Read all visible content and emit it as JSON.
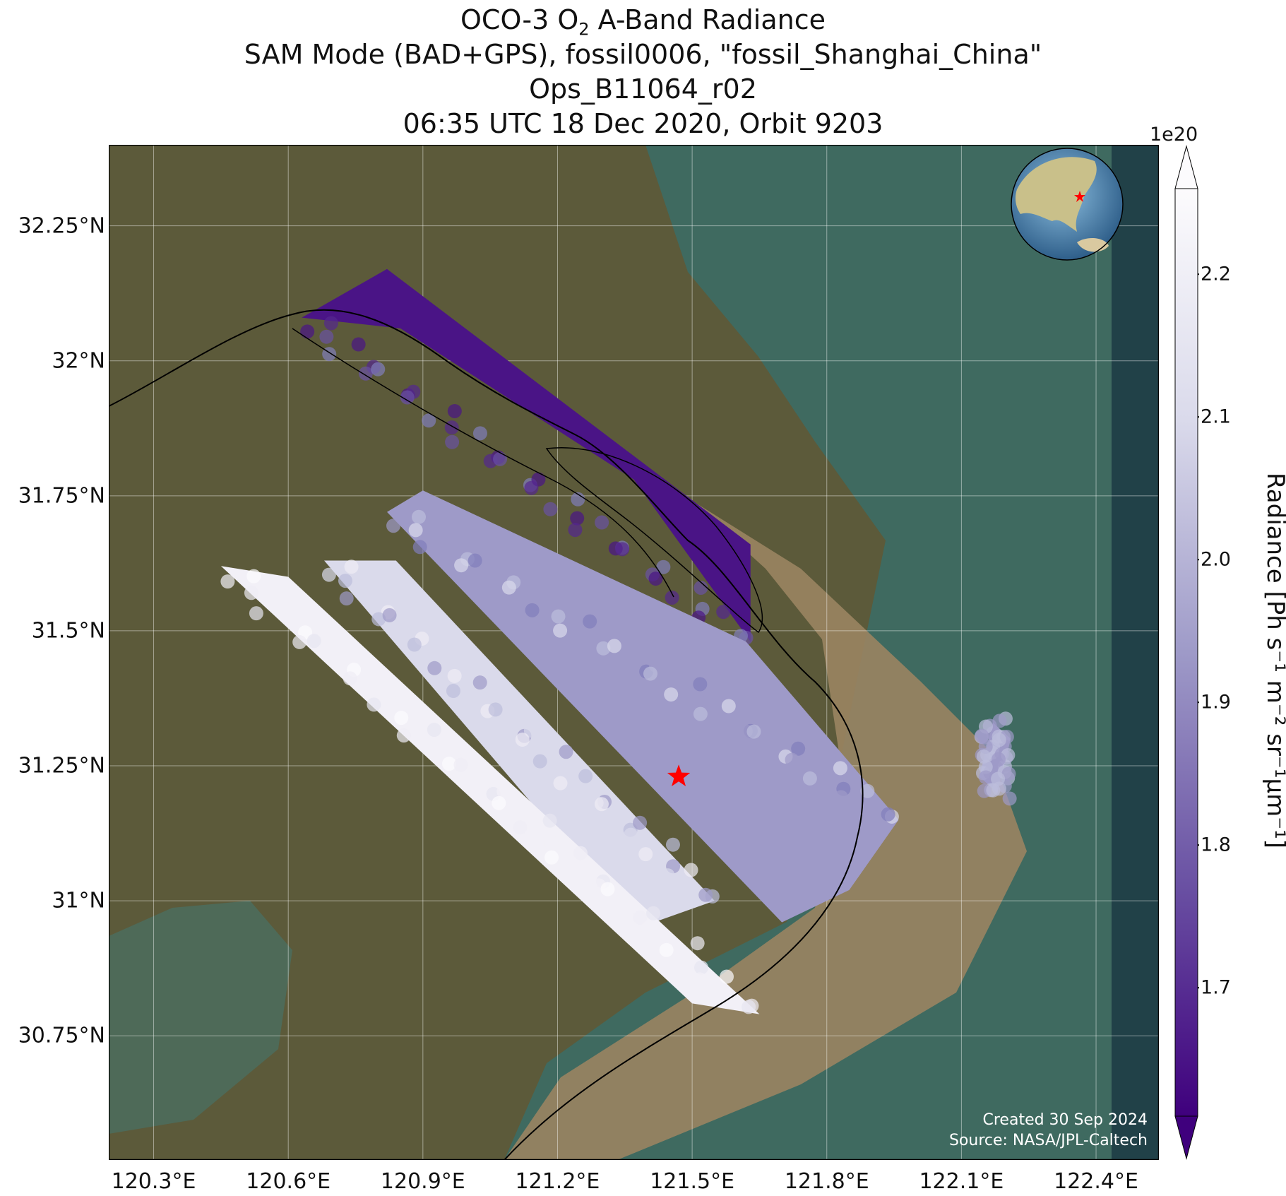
{
  "title": {
    "line1_prefix": "OCO-3 O",
    "line1_sub": "2",
    "line1_suffix": " A-Band Radiance",
    "line2": "SAM Mode (BAD+GPS), fossil0006, \"fossil_Shanghai_China\"",
    "line3": "Ops_B11064_r02",
    "line4": "06:35 UTC 18 Dec 2020, Orbit 9203"
  },
  "axes": {
    "lat_labels": [
      "32.25°N",
      "32°N",
      "31.75°N",
      "31.5°N",
      "31.25°N",
      "31°N",
      "30.75°N"
    ],
    "lat_values": [
      32.25,
      32.0,
      31.75,
      31.5,
      31.25,
      31.0,
      30.75
    ],
    "lon_labels": [
      "120.3°E",
      "120.6°E",
      "120.9°E",
      "121.2°E",
      "121.5°E",
      "121.8°E",
      "122.1°E",
      "122.4°E"
    ],
    "lon_values": [
      120.3,
      120.6,
      120.9,
      121.2,
      121.5,
      121.8,
      122.1,
      122.4
    ],
    "lon_range": [
      120.2,
      122.54
    ],
    "lat_range": [
      30.52,
      32.4
    ],
    "grid": true
  },
  "colorbar": {
    "exponent": "1e20",
    "ticks": [
      "2.2",
      "2.1",
      "2.0",
      "1.9",
      "1.8",
      "1.7"
    ],
    "tick_values": [
      2.2,
      2.1,
      2.0,
      1.9,
      1.8,
      1.7
    ],
    "range": [
      1.61,
      2.26
    ],
    "label": "Radiance [Ph s⁻¹ m⁻² sr⁻¹μm⁻¹]",
    "colormap": "Purples_r",
    "color_low": "#3f007d",
    "color_high": "#fcfbfd"
  },
  "target": {
    "lon": 121.47,
    "lat": 31.23,
    "color": "#ff0000"
  },
  "credits": {
    "created": "Created 30 Sep 2024",
    "source": "Source: NASA/JPL-Caltech"
  },
  "colors": {
    "land": "#5c5a3a",
    "water": "#3f6a60",
    "sediment": "#9a8462"
  }
}
